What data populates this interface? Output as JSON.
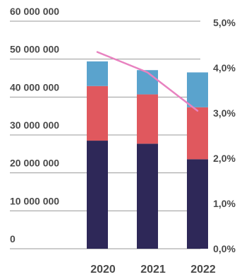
{
  "chart_data": {
    "type": "bar",
    "stacked": true,
    "categories": [
      "2020",
      "2021",
      "2022"
    ],
    "series": [
      {
        "values": [
          28500000,
          27700000,
          23600000
        ],
        "color": "#2e2858"
      },
      {
        "values": [
          14400000,
          13000000,
          13700000
        ],
        "color": "#e0585e"
      },
      {
        "values": [
          6500000,
          6400000,
          9200000
        ],
        "color": "#5aa3cd"
      }
    ],
    "line_series": {
      "values": [
        4.35,
        3.9,
        3.05
      ],
      "color": "#e882c0",
      "axis": "right"
    },
    "ylim": [
      0,
      60000000
    ],
    "y2lim": [
      0,
      5.0
    ],
    "y_ticks": [
      {
        "value": 0,
        "label": "0"
      },
      {
        "value": 10000000,
        "label": "10 000 000"
      },
      {
        "value": 20000000,
        "label": "20 000 000"
      },
      {
        "value": 30000000,
        "label": "30 000 000"
      },
      {
        "value": 40000000,
        "label": "40 000 000"
      },
      {
        "value": 50000000,
        "label": "50 000 000"
      },
      {
        "value": 60000000,
        "label": "60 000 000"
      }
    ],
    "y2_ticks": [
      {
        "value": 0,
        "label": "0,0%"
      },
      {
        "value": 1,
        "label": "1,0%"
      },
      {
        "value": 2,
        "label": "2,0%"
      },
      {
        "value": 3,
        "label": "3,0%"
      },
      {
        "value": 4,
        "label": "4,0%"
      },
      {
        "value": 5,
        "label": "5,0%"
      }
    ],
    "grid": true,
    "legend": "none",
    "title": "",
    "xlabel": "",
    "ylabel": ""
  }
}
